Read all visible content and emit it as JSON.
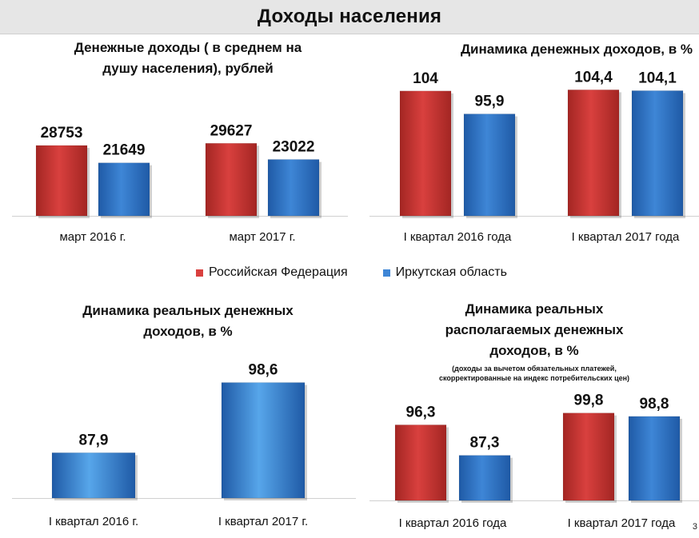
{
  "page": {
    "title": "Доходы населения",
    "corner_mark": "3"
  },
  "colors": {
    "red": "#d9403e",
    "red_dark": "#a32623",
    "blue": "#3e86d6",
    "blue_dark": "#1f5aa6",
    "blue_light": "#57a6ea"
  },
  "legend": {
    "items": [
      "Российская Федерация",
      "Иркутская область"
    ]
  },
  "chart_data": [
    {
      "type": "bar",
      "title": [
        "Денежные доходы ( в среднем на",
        "душу населения), рублей"
      ],
      "categories": [
        "март 2016 г.",
        "март 2017 г."
      ],
      "series": [
        {
          "name": "Российская Федерация",
          "values": [
            28753,
            29627
          ],
          "labels": [
            "28753",
            "29627"
          ]
        },
        {
          "name": "Иркутская область",
          "values": [
            21649,
            23022
          ],
          "labels": [
            "21649",
            "23022"
          ]
        }
      ],
      "ylim": [
        0,
        40500
      ]
    },
    {
      "type": "bar",
      "title": [
        "Динамика денежных доходов, в %"
      ],
      "categories": [
        "I квартал 2016 года",
        "I квартал 2017 года"
      ],
      "series": [
        {
          "name": "Российская Федерация",
          "values": [
            104,
            104.4
          ],
          "labels": [
            "104",
            "104,4"
          ]
        },
        {
          "name": "Иркутская область",
          "values": [
            95.9,
            104.1
          ],
          "labels": [
            "95,9",
            "104,1"
          ]
        }
      ],
      "ylim": [
        60,
        106.2
      ]
    },
    {
      "type": "bar",
      "title": [
        "Динамика реальных денежных",
        "доходов, в %"
      ],
      "categories": [
        "I квартал 2016 г.",
        "I квартал 2017 г."
      ],
      "series": [
        {
          "name": "Иркутская область",
          "values": [
            87.9,
            98.6
          ],
          "labels": [
            "87,9",
            "98,6"
          ]
        }
      ],
      "ylim": [
        81,
        99.4
      ]
    },
    {
      "type": "bar",
      "title": [
        "Динамика реальных",
        "располагаемых денежных",
        "доходов, в %"
      ],
      "subtitle": [
        "(доходы за вычетом обязательных платежей,",
        "скорректированные на индекс потребительских цен)"
      ],
      "categories": [
        "I квартал 2016 года",
        "I квартал 2017 года"
      ],
      "series": [
        {
          "name": "Российская Федерация",
          "values": [
            96.3,
            99.8
          ],
          "labels": [
            "96,3",
            "99,8"
          ]
        },
        {
          "name": "Иркутская область",
          "values": [
            87.3,
            98.8
          ],
          "labels": [
            "87,3",
            "98,8"
          ]
        }
      ],
      "ylim": [
        74,
        100.9
      ]
    }
  ]
}
